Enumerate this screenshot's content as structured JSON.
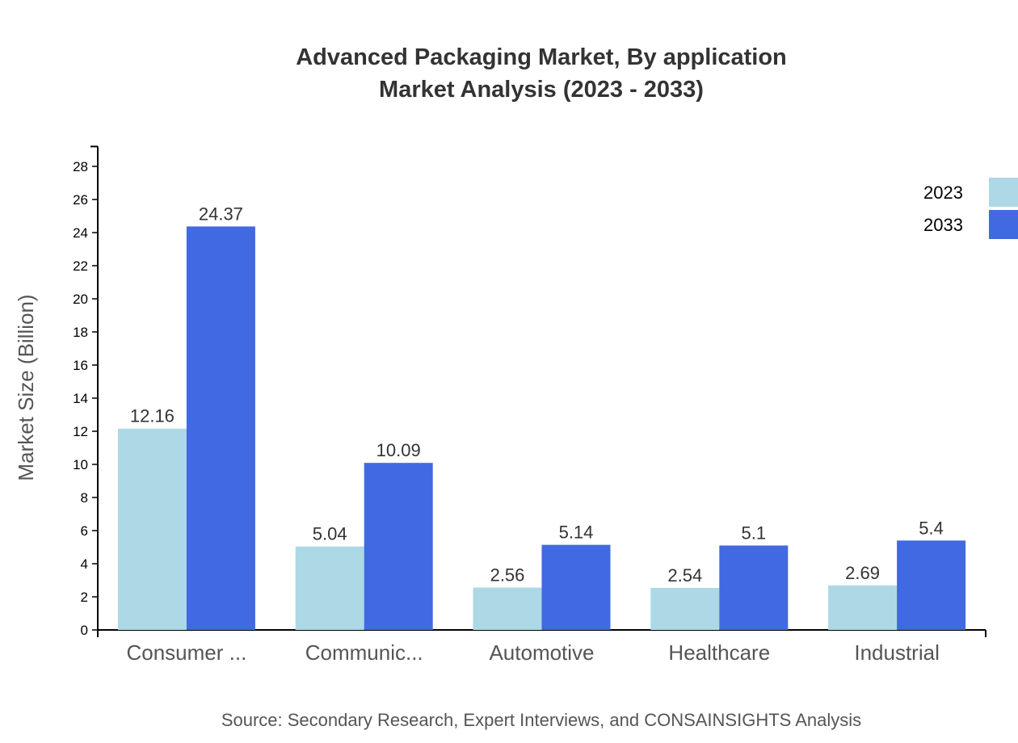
{
  "chart_data": {
    "type": "bar",
    "title": "Advanced Packaging Market, By application",
    "subtitle": "Market Analysis (2023 - 2033)",
    "xlabel": "",
    "ylabel": "Market Size (Billion)",
    "categories": [
      "Consumer ...",
      "Communic...",
      "Automotive",
      "Healthcare",
      "Industrial"
    ],
    "series": [
      {
        "name": "2023",
        "color": "#add8e6",
        "values": [
          12.16,
          5.04,
          2.56,
          2.54,
          2.69
        ]
      },
      {
        "name": "2033",
        "color": "#4169e1",
        "values": [
          24.37,
          10.09,
          5.14,
          5.1,
          5.4
        ]
      }
    ],
    "yticks": [
      0,
      2,
      4,
      6,
      8,
      10,
      12,
      14,
      16,
      18,
      20,
      22,
      24,
      26,
      28
    ],
    "ylim": [
      0,
      29.2
    ],
    "grid": false,
    "legend": "top-right",
    "source": "Source: Secondary Research, Expert Interviews, and CONSAINSIGHTS Analysis"
  }
}
